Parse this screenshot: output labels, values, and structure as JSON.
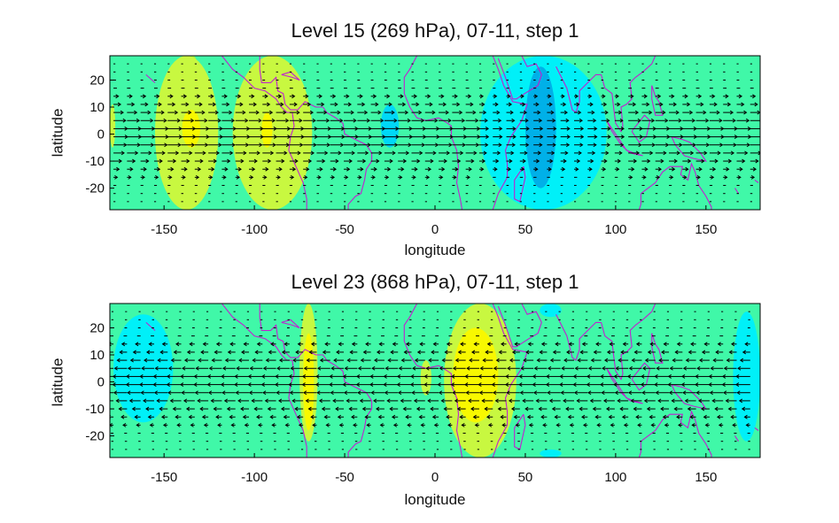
{
  "chart_data": [
    {
      "type": "heatmap",
      "title": "Level 15 (269 hPa), 07-11, step 1",
      "xlabel": "longitude",
      "ylabel": "latitude",
      "xlim": [
        -180,
        180
      ],
      "ylim": [
        -28,
        29
      ],
      "xticks": [
        "-150",
        "-100",
        "-50",
        "0",
        "50",
        "100",
        "150"
      ],
      "yticks": [
        "20",
        "10",
        "0",
        "-10",
        "-20"
      ],
      "xtick_values": [
        -150,
        -100,
        -50,
        0,
        50,
        100,
        150
      ],
      "ytick_values": [
        20,
        10,
        0,
        -10,
        -20
      ],
      "background_color": "#40f8a8",
      "coastline_color": "#c020d0",
      "wind_arrows": "zonal wind vectors, mostly eastward",
      "regions": [
        {
          "value": "positive",
          "color": "#a8f840",
          "lon": [
            -140,
            -128
          ],
          "lat": [
            -27,
            29
          ]
        },
        {
          "value": "positive",
          "color": "#c8f840",
          "lon": [
            -155,
            -120
          ],
          "lat": [
            -28,
            29
          ]
        },
        {
          "value": "positive",
          "color": "#c8f840",
          "lon": [
            -112,
            -68
          ],
          "lat": [
            -28,
            29
          ]
        },
        {
          "value": "max",
          "color": "#f8f800",
          "lon": [
            -140,
            -130
          ],
          "lat": [
            -5,
            9
          ]
        },
        {
          "value": "max",
          "color": "#f8f800",
          "lon": [
            -96,
            -90
          ],
          "lat": [
            -5,
            8
          ]
        },
        {
          "value": "positive",
          "color": "#c8f840",
          "lon": [
            -180,
            -177
          ],
          "lat": [
            -5,
            11
          ]
        },
        {
          "value": "negative",
          "color": "#00f0f8",
          "lon": [
            25,
            95
          ],
          "lat": [
            -28,
            29
          ]
        },
        {
          "value": "negative",
          "color": "#00d8f8",
          "lon": [
            -30,
            -20
          ],
          "lat": [
            -5,
            11
          ]
        },
        {
          "value": "min",
          "color": "#00b0e8",
          "lon": [
            50,
            67
          ],
          "lat": [
            -20,
            25
          ]
        }
      ]
    },
    {
      "type": "heatmap",
      "title": "Level 23 (868 hPa), 07-11, step 1",
      "xlabel": "longitude",
      "ylabel": "latitude",
      "xlim": [
        -180,
        180
      ],
      "ylim": [
        -28,
        29
      ],
      "xticks": [
        "-150",
        "-100",
        "-50",
        "0",
        "50",
        "100",
        "150"
      ],
      "yticks": [
        "20",
        "10",
        "0",
        "-10",
        "-20"
      ],
      "xtick_values": [
        -150,
        -100,
        -50,
        0,
        50,
        100,
        150
      ],
      "ytick_values": [
        20,
        10,
        0,
        -10,
        -20
      ],
      "background_color": "#40f8a8",
      "coastline_color": "#c020d0",
      "wind_arrows": "zonal wind vectors, mostly westward",
      "regions": [
        {
          "value": "negative",
          "color": "#00f0f8",
          "lon": [
            -178,
            -145
          ],
          "lat": [
            -15,
            25
          ]
        },
        {
          "value": "negative",
          "color": "#00f0f8",
          "lon": [
            165,
            180
          ],
          "lat": [
            -22,
            26
          ]
        },
        {
          "value": "positive",
          "color": "#c8f840",
          "lon": [
            -75,
            -65
          ],
          "lat": [
            -22,
            29
          ]
        },
        {
          "value": "max",
          "color": "#f8f800",
          "lon": [
            -73,
            -67
          ],
          "lat": [
            -18,
            18
          ]
        },
        {
          "value": "positive",
          "color": "#c8f840",
          "lon": [
            -8,
            -2
          ],
          "lat": [
            -5,
            8
          ]
        },
        {
          "value": "positive",
          "color": "#c8f840",
          "lon": [
            5,
            45
          ],
          "lat": [
            -28,
            29
          ]
        },
        {
          "value": "max",
          "color": "#f8f800",
          "lon": [
            10,
            35
          ],
          "lat": [
            -15,
            20
          ]
        },
        {
          "value": "negative",
          "color": "#00f0f8",
          "lon": [
            58,
            70
          ],
          "lat": [
            24,
            29
          ]
        },
        {
          "value": "negative",
          "color": "#00f0f8",
          "lon": [
            58,
            70
          ],
          "lat": [
            -28,
            -25
          ]
        }
      ]
    }
  ]
}
